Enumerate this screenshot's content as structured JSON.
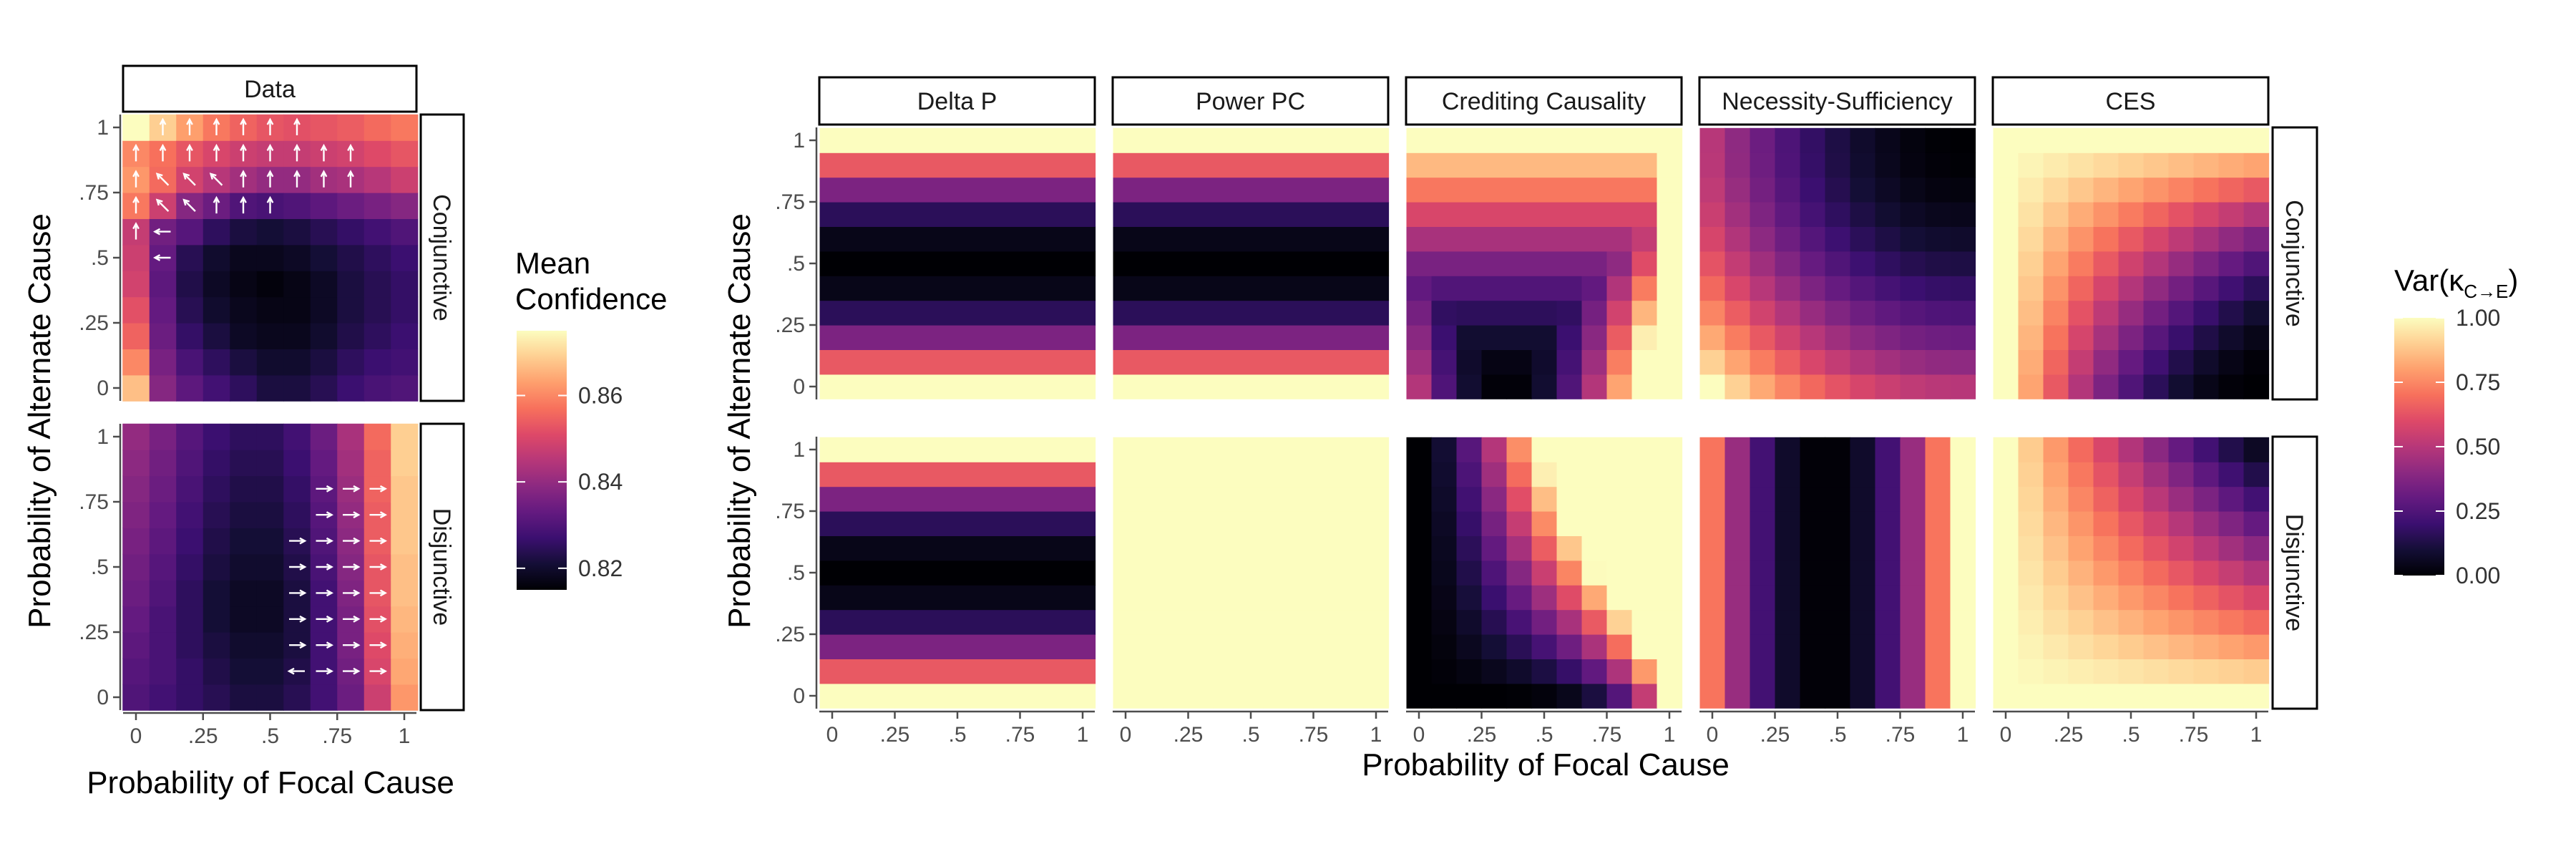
{
  "figure": {
    "x_axis_title": "Probability of Focal Cause",
    "y_axis_title": "Probability of Alternate Cause",
    "row_labels": [
      "Conjunctive",
      "Disjunctive"
    ],
    "colors": {
      "strip_border": "#000000",
      "arrow": "#ffffff",
      "tick": "#4d4d4d"
    },
    "colormap": "magma"
  },
  "chart_data": [
    {
      "type": "heatmap",
      "panel": "Data",
      "title": "Data",
      "tick_labels": [
        "0",
        ".25",
        ".5",
        ".75",
        "1"
      ],
      "xlim": [
        0,
        1
      ],
      "ylim": [
        0,
        1
      ],
      "grid": "11x11",
      "legend": {
        "title_lines": [
          "Mean",
          "Confidence"
        ],
        "range": [
          0.815,
          0.875
        ],
        "ticks": [
          0.82,
          0.84,
          0.86
        ],
        "tick_labels": [
          "0.82",
          "0.84",
          "0.86"
        ],
        "placement": "right"
      },
      "rows": [
        {
          "label": "Conjunctive",
          "values": [
            [
              0.867,
              0.838,
              0.832,
              0.828,
              0.825,
              0.822,
              0.822,
              0.824,
              0.827,
              0.829,
              0.83
            ],
            [
              0.86,
              0.836,
              0.829,
              0.825,
              0.822,
              0.82,
              0.82,
              0.822,
              0.825,
              0.827,
              0.828
            ],
            [
              0.855,
              0.834,
              0.826,
              0.822,
              0.819,
              0.818,
              0.818,
              0.82,
              0.823,
              0.825,
              0.827
            ],
            [
              0.852,
              0.833,
              0.824,
              0.82,
              0.818,
              0.817,
              0.817,
              0.819,
              0.822,
              0.824,
              0.826
            ],
            [
              0.849,
              0.832,
              0.823,
              0.819,
              0.817,
              0.816,
              0.817,
              0.819,
              0.822,
              0.824,
              0.826
            ],
            [
              0.848,
              0.833,
              0.824,
              0.82,
              0.818,
              0.818,
              0.819,
              0.821,
              0.823,
              0.825,
              0.827
            ],
            [
              0.847,
              0.835,
              0.831,
              0.825,
              0.822,
              0.821,
              0.822,
              0.824,
              0.826,
              0.828,
              0.83
            ],
            [
              0.858,
              0.848,
              0.838,
              0.834,
              0.83,
              0.829,
              0.83,
              0.832,
              0.834,
              0.836,
              0.838
            ],
            [
              0.862,
              0.856,
              0.849,
              0.845,
              0.842,
              0.84,
              0.84,
              0.842,
              0.843,
              0.845,
              0.848
            ],
            [
              0.86,
              0.857,
              0.853,
              0.85,
              0.848,
              0.847,
              0.847,
              0.848,
              0.849,
              0.851,
              0.853
            ],
            [
              0.875,
              0.869,
              0.863,
              0.858,
              0.855,
              0.853,
              0.852,
              0.853,
              0.854,
              0.856,
              0.858
            ]
          ],
          "arrows": [
            {
              "i": 1,
              "j": 10,
              "dir": "up"
            },
            {
              "i": 2,
              "j": 10,
              "dir": "up"
            },
            {
              "i": 3,
              "j": 10,
              "dir": "up"
            },
            {
              "i": 4,
              "j": 10,
              "dir": "up"
            },
            {
              "i": 5,
              "j": 10,
              "dir": "up"
            },
            {
              "i": 6,
              "j": 10,
              "dir": "up"
            },
            {
              "i": 0,
              "j": 9,
              "dir": "up"
            },
            {
              "i": 1,
              "j": 9,
              "dir": "up"
            },
            {
              "i": 2,
              "j": 9,
              "dir": "up"
            },
            {
              "i": 3,
              "j": 9,
              "dir": "up"
            },
            {
              "i": 4,
              "j": 9,
              "dir": "up"
            },
            {
              "i": 5,
              "j": 9,
              "dir": "up"
            },
            {
              "i": 6,
              "j": 9,
              "dir": "up"
            },
            {
              "i": 7,
              "j": 9,
              "dir": "up"
            },
            {
              "i": 8,
              "j": 9,
              "dir": "up"
            },
            {
              "i": 0,
              "j": 8,
              "dir": "up"
            },
            {
              "i": 1,
              "j": 8,
              "dir": "up-left"
            },
            {
              "i": 2,
              "j": 8,
              "dir": "up-left"
            },
            {
              "i": 3,
              "j": 8,
              "dir": "up-left"
            },
            {
              "i": 4,
              "j": 8,
              "dir": "up"
            },
            {
              "i": 5,
              "j": 8,
              "dir": "up"
            },
            {
              "i": 6,
              "j": 8,
              "dir": "up"
            },
            {
              "i": 7,
              "j": 8,
              "dir": "up"
            },
            {
              "i": 8,
              "j": 8,
              "dir": "up"
            },
            {
              "i": 0,
              "j": 7,
              "dir": "up"
            },
            {
              "i": 1,
              "j": 7,
              "dir": "up-left"
            },
            {
              "i": 2,
              "j": 7,
              "dir": "up-left"
            },
            {
              "i": 3,
              "j": 7,
              "dir": "up"
            },
            {
              "i": 4,
              "j": 7,
              "dir": "up"
            },
            {
              "i": 5,
              "j": 7,
              "dir": "up"
            },
            {
              "i": 0,
              "j": 6,
              "dir": "up"
            },
            {
              "i": 1,
              "j": 6,
              "dir": "left"
            },
            {
              "i": 1,
              "j": 5,
              "dir": "left"
            }
          ]
        },
        {
          "label": "Disjunctive",
          "values": [
            [
              0.83,
              0.828,
              0.826,
              0.824,
              0.822,
              0.822,
              0.824,
              0.828,
              0.834,
              0.848,
              0.862
            ],
            [
              0.831,
              0.829,
              0.826,
              0.823,
              0.821,
              0.821,
              0.823,
              0.828,
              0.835,
              0.85,
              0.864
            ],
            [
              0.832,
              0.829,
              0.825,
              0.822,
              0.82,
              0.82,
              0.822,
              0.828,
              0.836,
              0.851,
              0.865
            ],
            [
              0.833,
              0.829,
              0.825,
              0.821,
              0.819,
              0.819,
              0.822,
              0.828,
              0.836,
              0.852,
              0.866
            ],
            [
              0.834,
              0.83,
              0.825,
              0.821,
              0.819,
              0.819,
              0.822,
              0.828,
              0.837,
              0.853,
              0.867
            ],
            [
              0.835,
              0.831,
              0.826,
              0.822,
              0.82,
              0.82,
              0.823,
              0.829,
              0.838,
              0.853,
              0.867
            ],
            [
              0.836,
              0.832,
              0.827,
              0.823,
              0.821,
              0.821,
              0.824,
              0.83,
              0.839,
              0.854,
              0.868
            ],
            [
              0.837,
              0.833,
              0.828,
              0.824,
              0.822,
              0.822,
              0.825,
              0.831,
              0.84,
              0.854,
              0.868
            ],
            [
              0.838,
              0.834,
              0.829,
              0.825,
              0.823,
              0.823,
              0.826,
              0.832,
              0.841,
              0.855,
              0.868
            ],
            [
              0.839,
              0.835,
              0.83,
              0.826,
              0.824,
              0.824,
              0.827,
              0.833,
              0.842,
              0.855,
              0.869
            ],
            [
              0.84,
              0.836,
              0.831,
              0.827,
              0.825,
              0.825,
              0.828,
              0.834,
              0.843,
              0.856,
              0.869
            ]
          ],
          "arrows": [
            {
              "i": 7,
              "j": 8,
              "dir": "right"
            },
            {
              "i": 8,
              "j": 8,
              "dir": "right"
            },
            {
              "i": 9,
              "j": 8,
              "dir": "right"
            },
            {
              "i": 7,
              "j": 7,
              "dir": "right"
            },
            {
              "i": 8,
              "j": 7,
              "dir": "right"
            },
            {
              "i": 9,
              "j": 7,
              "dir": "right"
            },
            {
              "i": 6,
              "j": 6,
              "dir": "right"
            },
            {
              "i": 7,
              "j": 6,
              "dir": "right"
            },
            {
              "i": 8,
              "j": 6,
              "dir": "right"
            },
            {
              "i": 9,
              "j": 6,
              "dir": "right"
            },
            {
              "i": 6,
              "j": 5,
              "dir": "right"
            },
            {
              "i": 7,
              "j": 5,
              "dir": "right"
            },
            {
              "i": 8,
              "j": 5,
              "dir": "right"
            },
            {
              "i": 9,
              "j": 5,
              "dir": "right"
            },
            {
              "i": 6,
              "j": 4,
              "dir": "right"
            },
            {
              "i": 7,
              "j": 4,
              "dir": "right"
            },
            {
              "i": 8,
              "j": 4,
              "dir": "right"
            },
            {
              "i": 9,
              "j": 4,
              "dir": "right"
            },
            {
              "i": 6,
              "j": 3,
              "dir": "right"
            },
            {
              "i": 7,
              "j": 3,
              "dir": "right"
            },
            {
              "i": 8,
              "j": 3,
              "dir": "right"
            },
            {
              "i": 9,
              "j": 3,
              "dir": "right"
            },
            {
              "i": 6,
              "j": 2,
              "dir": "right"
            },
            {
              "i": 7,
              "j": 2,
              "dir": "right"
            },
            {
              "i": 8,
              "j": 2,
              "dir": "right"
            },
            {
              "i": 9,
              "j": 2,
              "dir": "right"
            },
            {
              "i": 6,
              "j": 1,
              "dir": "left"
            },
            {
              "i": 7,
              "j": 1,
              "dir": "right"
            },
            {
              "i": 8,
              "j": 1,
              "dir": "right"
            },
            {
              "i": 9,
              "j": 1,
              "dir": "right"
            }
          ]
        }
      ]
    },
    {
      "type": "heatmap",
      "panel": "Models",
      "columns": [
        "Delta P",
        "Power PC",
        "Crediting Causality",
        "Necessity-Sufficiency",
        "CES"
      ],
      "tick_labels": [
        "0",
        ".25",
        ".5",
        ".75",
        "1"
      ],
      "xlim": [
        0,
        1
      ],
      "ylim": [
        0,
        1
      ],
      "grid": "11x11",
      "legend": {
        "title": "Var(κ",
        "title_subscript": "C→E",
        "title_end": ")",
        "range": [
          0,
          1
        ],
        "ticks": [
          0,
          0.25,
          0.5,
          0.75,
          1
        ],
        "tick_labels": [
          "0.00",
          "0.25",
          "0.50",
          "0.75",
          "1.00"
        ],
        "placement": "right"
      },
      "variance_formulas": {
        "Delta P": "4*(y-0.5)^2 by row",
        "Power PC": "conjunctive: 4*(y-0.5)^2; disjunctive: 1",
        "Crediting Causality": "conjunctive: max(y^1.5, x^6, 4(x-0.35)^2*(1-y)); disjunctive: min(1, 3*y*x^1.5 + x^6)",
        "Necessity-Sufficiency": "conjunctive: ((1-x)^2 + (1-y)^2)/2; disjunctive: 3.5*(x-0.45)^2",
        "CES": "conjunctive: (1 - x*(1-y))^2; disjunctive: (1 - y*x*0.9)^1.2"
      }
    }
  ]
}
